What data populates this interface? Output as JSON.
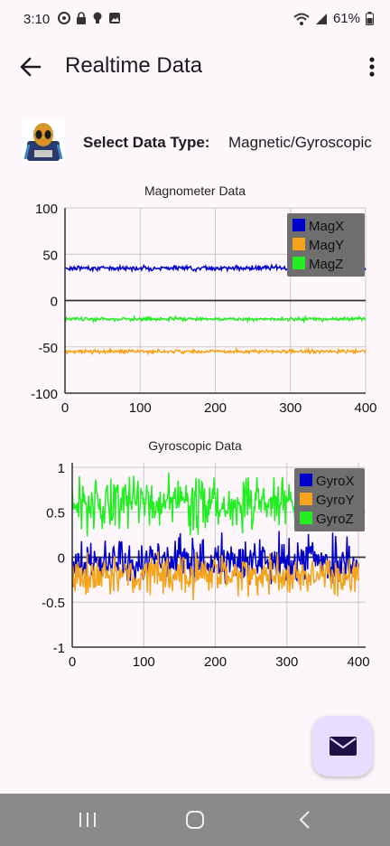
{
  "status_bar": {
    "time": "3:10",
    "battery": "61%",
    "icons": [
      "circle-app-icon",
      "lock-icon",
      "lightbulb-icon",
      "image-icon",
      "wifi-icon",
      "signal-icon",
      "battery-icon"
    ]
  },
  "app_bar": {
    "title": "Realtime Data",
    "back_icon": "arrow-back-icon",
    "menu_icon": "more-vert-icon"
  },
  "selector": {
    "label": "Select Data Type:",
    "value": "Magnetic/Gyroscopic"
  },
  "fab": {
    "icon": "mail-icon",
    "accent": "#e9ddff",
    "icon_color": "#1d1246"
  },
  "nav_bar": {
    "icons": [
      "recent-apps-icon",
      "home-icon",
      "back-icon"
    ]
  },
  "charts": [
    {
      "title": "Magnometer Data",
      "type": "line",
      "xlim": [
        0,
        400
      ],
      "ylim": [
        -100,
        100
      ],
      "xticks": [
        "0",
        "100",
        "200",
        "300",
        "400"
      ],
      "yticks": [
        "100",
        "50",
        "0",
        "-50",
        "-100"
      ],
      "grid": true,
      "legend_placement": "top-right",
      "series": [
        {
          "name": "MagX",
          "color": "#0000cc",
          "mean": 35,
          "noise": 1.2
        },
        {
          "name": "MagY",
          "color": "#f5a31a",
          "mean": -55,
          "noise": 1.0
        },
        {
          "name": "MagZ",
          "color": "#22ee22",
          "mean": -20,
          "noise": 1.0
        }
      ]
    },
    {
      "title": "Gyroscopic Data",
      "type": "line",
      "xlim": [
        0,
        410
      ],
      "ylim": [
        -1,
        1.05
      ],
      "xticks": [
        "0",
        "100",
        "200",
        "300",
        "400"
      ],
      "yticks": [
        "1",
        "0.5",
        "0",
        "-0.5",
        "-1"
      ],
      "grid": true,
      "legend_placement": "top-right",
      "series": [
        {
          "name": "GyroX",
          "color": "#0000cc",
          "mean": -0.05,
          "noise": 0.13
        },
        {
          "name": "GyroY",
          "color": "#f5a31a",
          "mean": -0.2,
          "noise": 0.11
        },
        {
          "name": "GyroZ",
          "color": "#22ee22",
          "mean": 0.6,
          "noise": 0.14
        }
      ]
    }
  ]
}
